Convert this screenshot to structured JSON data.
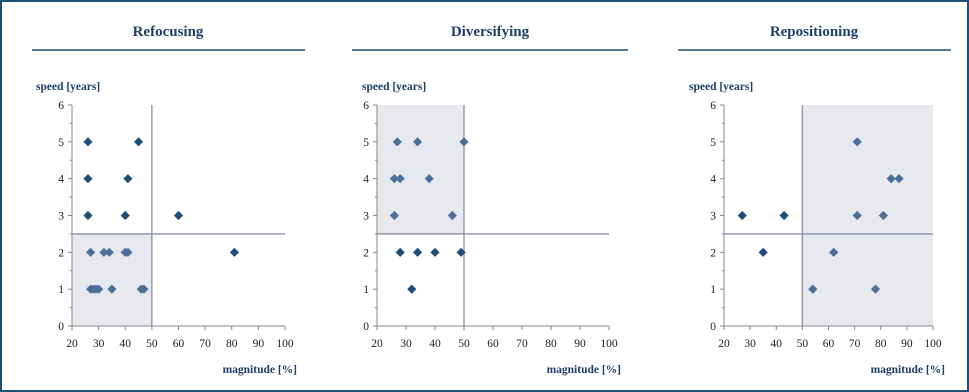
{
  "colors": {
    "frame": "#1f4e79",
    "title": "#1f3f66",
    "title_rule": "#1f4e79",
    "shade": "#e8e8ef",
    "quadrant_lines": "#8a8fa8",
    "axis": "#888888",
    "marker": "#1f4e79",
    "marker_light": "#4a6f98"
  },
  "chart_data": [
    {
      "type": "scatter",
      "title": "Refocusing",
      "ylabel": "speed [years]",
      "xlabel": "magnitude [%]",
      "xlim": [
        20,
        100
      ],
      "ylim": [
        0,
        6
      ],
      "xticks": [
        20,
        30,
        40,
        50,
        60,
        70,
        80,
        90,
        100
      ],
      "yticks": [
        0,
        1,
        2,
        3,
        4,
        5,
        6
      ],
      "xtick_labels": [
        "20",
        "30",
        "40",
        "50",
        "60",
        "70",
        "80",
        "90",
        "100"
      ],
      "ytick_labels": [
        "0",
        "1",
        "2",
        "3",
        "4",
        "5",
        "6"
      ],
      "quadrant_lines": {
        "x": 50,
        "y": 2.5
      },
      "shaded_region": {
        "x": [
          20,
          50
        ],
        "y": [
          0,
          2.5
        ]
      },
      "grid": false,
      "points": [
        [
          26,
          5
        ],
        [
          45,
          5
        ],
        [
          26,
          4
        ],
        [
          41,
          4
        ],
        [
          26,
          3
        ],
        [
          40,
          3
        ],
        [
          60,
          3
        ],
        [
          81,
          2
        ],
        [
          27,
          2
        ],
        [
          32,
          2
        ],
        [
          34,
          2
        ],
        [
          40,
          2
        ],
        [
          41,
          2
        ],
        [
          27,
          1
        ],
        [
          28,
          1
        ],
        [
          29,
          1
        ],
        [
          30,
          1
        ],
        [
          35,
          1
        ],
        [
          46,
          1
        ],
        [
          47,
          1
        ]
      ]
    },
    {
      "type": "scatter",
      "title": "Diversifying",
      "ylabel": "speed [years]",
      "xlabel": "magnitude [%]",
      "xlim": [
        20,
        100
      ],
      "ylim": [
        0,
        6
      ],
      "xticks": [
        20,
        30,
        40,
        50,
        60,
        70,
        80,
        90,
        100
      ],
      "yticks": [
        0,
        1,
        2,
        3,
        4,
        5,
        6
      ],
      "xtick_labels": [
        "20",
        "30",
        "40",
        "50",
        "60",
        "70",
        "80",
        "90",
        "100"
      ],
      "ytick_labels": [
        "0",
        "1",
        "2",
        "3",
        "4",
        "5",
        "6"
      ],
      "quadrant_lines": {
        "x": 50,
        "y": 2.5
      },
      "shaded_region": {
        "x": [
          20,
          50
        ],
        "y": [
          2.5,
          6
        ]
      },
      "grid": false,
      "points": [
        [
          27,
          5
        ],
        [
          34,
          5
        ],
        [
          50,
          5
        ],
        [
          26,
          4
        ],
        [
          28,
          4
        ],
        [
          38,
          4
        ],
        [
          26,
          3
        ],
        [
          46,
          3
        ],
        [
          28,
          2
        ],
        [
          34,
          2
        ],
        [
          40,
          2
        ],
        [
          49,
          2
        ],
        [
          32,
          1
        ]
      ]
    },
    {
      "type": "scatter",
      "title": "Repositioning",
      "ylabel": "speed [years]",
      "xlabel": "magnitude [%]",
      "xlim": [
        20,
        100
      ],
      "ylim": [
        0,
        6
      ],
      "xticks": [
        20,
        30,
        40,
        50,
        60,
        70,
        80,
        90,
        100
      ],
      "yticks": [
        0,
        1,
        2,
        3,
        4,
        5,
        6
      ],
      "xtick_labels": [
        "20",
        "30",
        "40",
        "50",
        "60",
        "70",
        "80",
        "90",
        "100"
      ],
      "ytick_labels": [
        "0",
        "1",
        "2",
        "3",
        "4",
        "5",
        "6"
      ],
      "quadrant_lines": {
        "x": 50,
        "y": 2.5
      },
      "shaded_region": {
        "x": [
          50,
          100
        ],
        "y": [
          0,
          6
        ]
      },
      "grid": false,
      "points": [
        [
          71,
          5
        ],
        [
          84,
          4
        ],
        [
          87,
          4
        ],
        [
          27,
          3
        ],
        [
          43,
          3
        ],
        [
          71,
          3
        ],
        [
          81,
          3
        ],
        [
          35,
          2
        ],
        [
          62,
          2
        ],
        [
          54,
          1
        ],
        [
          78,
          1
        ]
      ]
    }
  ]
}
